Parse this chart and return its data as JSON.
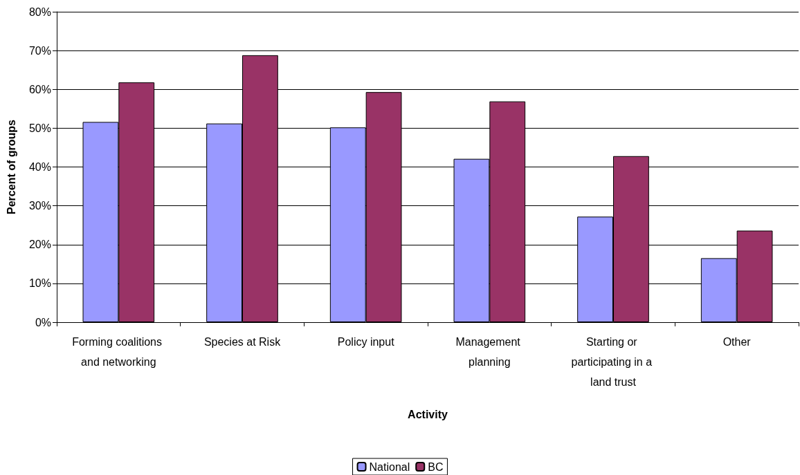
{
  "chart_data": {
    "type": "bar",
    "xlabel": "Activity",
    "ylabel": "Percent of groups",
    "categories": [
      "Forming coalitions and networking",
      "Species at Risk",
      "Policy input",
      "Management planning",
      "Starting or participating in a land trust",
      "Other"
    ],
    "series": [
      {
        "name": "National",
        "color": "#9999ff",
        "values": [
          51.6,
          51.2,
          50.2,
          42.1,
          27.2,
          16.5
        ]
      },
      {
        "name": "BC",
        "color": "#993366",
        "values": [
          61.8,
          68.8,
          59.3,
          56.9,
          42.8,
          23.6
        ]
      }
    ],
    "ylim": [
      0,
      80
    ],
    "yticks": [
      {
        "value": 0,
        "label": "0%"
      },
      {
        "value": 10,
        "label": "10%"
      },
      {
        "value": 20,
        "label": "20%"
      },
      {
        "value": 30,
        "label": "30%"
      },
      {
        "value": 40,
        "label": "40%"
      },
      {
        "value": 50,
        "label": "50%"
      },
      {
        "value": 60,
        "label": "60%"
      },
      {
        "value": 70,
        "label": "70%"
      },
      {
        "value": 80,
        "label": "80%"
      }
    ],
    "grid": "y",
    "legend": "bottom"
  }
}
